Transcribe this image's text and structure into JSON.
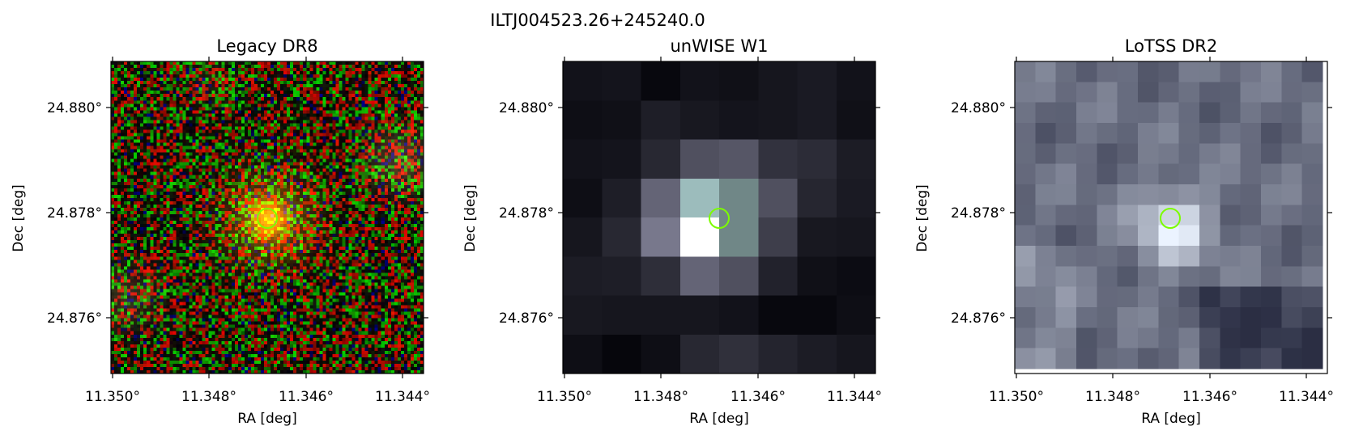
{
  "figure": {
    "suptitle": "ILTJ004523.26+245240.0",
    "marker_color": "#7cfc00",
    "panels": [
      {
        "title": "Legacy DR8",
        "xlabel": "RA [deg]",
        "ylabel": "Dec [deg]",
        "xticks": [
          "11.350°",
          "11.348°",
          "11.346°",
          "11.344°"
        ],
        "yticks": [
          "24.880°",
          "24.878°",
          "24.876°"
        ],
        "image": "rgb optical cutout, noisy red/green background with orange source at center"
      },
      {
        "title": "unWISE W1",
        "xlabel": "RA [deg]",
        "ylabel": "Dec [deg]",
        "xticks": [
          "11.350°",
          "11.348°",
          "11.346°",
          "11.344°"
        ],
        "yticks": [
          "24.880°",
          "24.878°",
          "24.876°"
        ],
        "image": "coarse 8x8 grayscale infrared cutout, bright source at center"
      },
      {
        "title": "LoTSS DR2",
        "xlabel": "RA [deg]",
        "ylabel": "Dec [deg]",
        "xticks": [
          "11.350°",
          "11.348°",
          "11.346°",
          "11.344°"
        ],
        "yticks": [
          "24.880°",
          "24.878°",
          "24.876°"
        ],
        "image": "15x15 bluish-gray radio cutout, bright source at center"
      }
    ]
  }
}
